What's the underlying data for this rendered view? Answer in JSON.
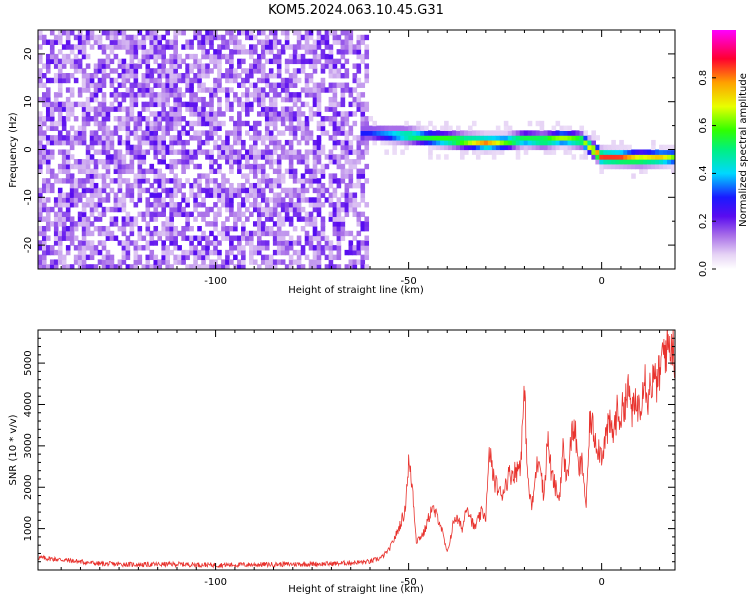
{
  "title": "KOM5.2024.063.10.45.G31",
  "chart_data": [
    {
      "type": "heatmap",
      "xlabel": "Height of straight line (km)",
      "ylabel": "Frequency (Hz)",
      "xlim": [
        -146,
        19
      ],
      "ylim": [
        -25,
        25
      ],
      "xticks": [
        -100,
        -50,
        0
      ],
      "yticks": [
        -20,
        -10,
        0,
        10,
        20
      ],
      "colorbar": {
        "label": "Normalized spectral amplitude",
        "range": [
          0,
          1
        ],
        "ticks": [
          "0.0",
          "0.2",
          "0.4",
          "0.6",
          "0.8"
        ],
        "colormap": "rainbow (white-lavender-purple-blue-cyan-green-yellow-red-magenta)"
      },
      "noise_region_x": [
        -146,
        -60
      ],
      "ridge": {
        "x": [
          -60,
          -55,
          -50,
          -45,
          -40,
          -35,
          -30,
          -25,
          -20,
          -15,
          -10,
          -5,
          0,
          5,
          10,
          15,
          19
        ],
        "frequency": [
          3.5,
          3.2,
          3.0,
          2.5,
          2.2,
          1.8,
          1.5,
          1.6,
          2.3,
          2.0,
          2.5,
          2.0,
          -1.5,
          -1.6,
          -1.8,
          -1.6,
          -1.5
        ],
        "amplitude": [
          0.3,
          0.4,
          0.55,
          0.55,
          0.6,
          0.65,
          0.8,
          0.6,
          0.55,
          0.6,
          0.65,
          0.6,
          0.85,
          0.85,
          0.7,
          0.75,
          0.6
        ]
      }
    },
    {
      "type": "line",
      "xlabel": "Height of straight line (km)",
      "ylabel": "SNR (10 * v/v)",
      "xlim": [
        -146,
        19
      ],
      "ylim": [
        0,
        5800
      ],
      "xticks": [
        -100,
        -50,
        0
      ],
      "yticks": [
        1000,
        2000,
        3000,
        4000,
        5000
      ],
      "line_color": "#e8332e",
      "series": [
        {
          "x": [
            -146,
            -140,
            -130,
            -120,
            -110,
            -100,
            -90,
            -80,
            -70,
            -60,
            -57,
            -55,
            -53,
            -51,
            -50,
            -49,
            -48,
            -46,
            -44,
            -42,
            -40,
            -38,
            -36,
            -35,
            -34,
            -33,
            -32,
            -31,
            -30,
            -29,
            -28,
            -26,
            -24,
            -22,
            -21,
            -20,
            -19,
            -18,
            -17,
            -16,
            -15,
            -14,
            -13,
            -12,
            -11,
            -10,
            -9,
            -8,
            -7,
            -6,
            -5,
            -4,
            -3,
            -2,
            -1,
            0,
            1,
            2,
            3,
            4,
            5,
            6,
            7,
            8,
            9,
            10,
            11,
            12,
            13,
            14,
            15,
            16,
            17,
            18,
            19
          ],
          "y": [
            300,
            250,
            150,
            130,
            140,
            120,
            130,
            140,
            150,
            200,
            300,
            500,
            900,
            1400,
            2600,
            2000,
            700,
            900,
            1500,
            1200,
            400,
            1300,
            1000,
            1600,
            1300,
            1000,
            1200,
            1400,
            1300,
            2900,
            2200,
            1800,
            2300,
            2400,
            2600,
            4300,
            2000,
            1500,
            2400,
            2800,
            1700,
            3200,
            2300,
            2000,
            1700,
            2900,
            2200,
            3100,
            3500,
            2400,
            2600,
            1500,
            3700,
            3300,
            3000,
            2800,
            3200,
            3500,
            3300,
            3800,
            3700,
            4100,
            4300,
            3800,
            4000,
            4000,
            4800,
            4200,
            4600,
            4500,
            4700,
            5300,
            5400,
            5500,
            5200
          ]
        }
      ]
    }
  ]
}
